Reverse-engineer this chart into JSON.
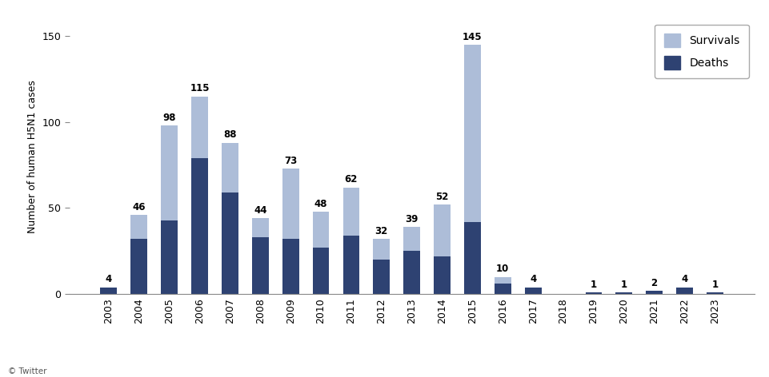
{
  "years": [
    "2003",
    "2004",
    "2005",
    "2006",
    "2007",
    "2008",
    "2009",
    "2010",
    "2011",
    "2012",
    "2013",
    "2014",
    "2015",
    "2016",
    "2017",
    "2018",
    "2019",
    "2020",
    "2021",
    "2022",
    "2023"
  ],
  "totals": [
    4,
    46,
    98,
    115,
    88,
    44,
    73,
    48,
    62,
    32,
    39,
    52,
    145,
    10,
    4,
    0,
    1,
    1,
    2,
    4,
    1
  ],
  "deaths": [
    4,
    32,
    43,
    79,
    59,
    33,
    32,
    27,
    34,
    20,
    25,
    22,
    42,
    6,
    4,
    0,
    1,
    1,
    2,
    4,
    1
  ],
  "color_deaths": "#2e4272",
  "color_survivals": "#adbdd8",
  "ylabel": "Number of human H5N1 cases",
  "ylim": [
    0,
    160
  ],
  "yticks": [
    0,
    50,
    100,
    150
  ],
  "legend_survivals": "Survivals",
  "legend_deaths": "Deaths",
  "source_text": "© Twitter",
  "bar_width": 0.55
}
